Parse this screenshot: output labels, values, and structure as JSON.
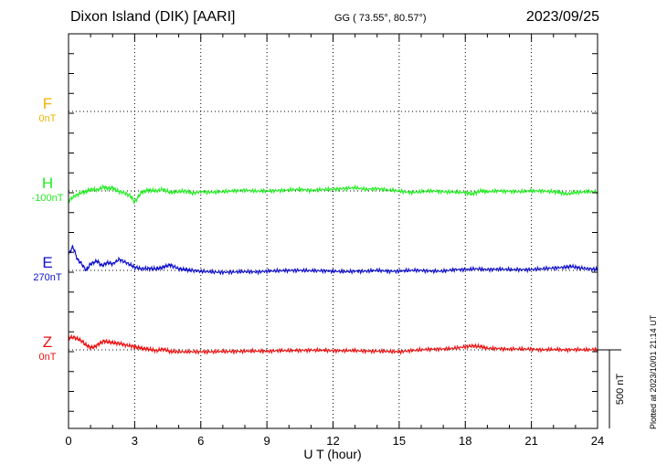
{
  "header": {
    "station": "Dixon Island (DIK)  [AARI]",
    "coords": "GG ( 73.55°,  80.57°)",
    "date": "2023/09/25"
  },
  "footer": {
    "plotted": "Plotted at 2023/10/01 21:14 UT"
  },
  "chart_data": {
    "type": "line",
    "xlabel": "U T (hour)",
    "xlim": [
      0,
      24
    ],
    "xticks": [
      0,
      3,
      6,
      9,
      12,
      15,
      18,
      21,
      24
    ],
    "scale_bar": "500 nT",
    "channels": [
      {
        "name": "F",
        "baseline": "0nT",
        "color": "#f0b400"
      },
      {
        "name": "H",
        "baseline": "-100nT",
        "color": "#22ee22"
      },
      {
        "name": "E",
        "baseline": "270nT",
        "color": "#1010cc"
      },
      {
        "name": "Z",
        "baseline": "0nT",
        "color": "#ee1111"
      }
    ],
    "series": [
      {
        "name": "H",
        "color": "#22ee22",
        "x": [
          0,
          0.3,
          0.6,
          0.8,
          1.0,
          1.3,
          1.6,
          1.8,
          2.0,
          2.2,
          2.5,
          2.8,
          3.0,
          3.3,
          3.6,
          4.0,
          4.3,
          4.6,
          5.0,
          5.3,
          5.6,
          6.0,
          6.5,
          7.0,
          7.5,
          8.0,
          8.5,
          9.0,
          9.5,
          10.0,
          10.5,
          11.0,
          11.5,
          12.0,
          12.5,
          13.0,
          13.5,
          14.0,
          14.5,
          15.0,
          15.5,
          16.0,
          16.5,
          17.0,
          17.5,
          18.0,
          18.3,
          18.7,
          19.0,
          19.5,
          20.0,
          20.5,
          21.0,
          21.5,
          22.0,
          22.3,
          22.6,
          23.0,
          23.5,
          24.0
        ],
        "y": [
          -60,
          -30,
          -10,
          -5,
          10,
          5,
          25,
          15,
          20,
          0,
          -10,
          -30,
          -70,
          -10,
          5,
          0,
          10,
          -10,
          -5,
          0,
          -15,
          -5,
          -8,
          -5,
          0,
          5,
          -2,
          0,
          2,
          5,
          10,
          3,
          8,
          10,
          15,
          20,
          10,
          15,
          5,
          0,
          -10,
          -5,
          0,
          -5,
          -8,
          -10,
          -20,
          0,
          -5,
          0,
          -3,
          -5,
          0,
          0,
          -5,
          -10,
          -20,
          -10,
          -5,
          -5
        ]
      },
      {
        "name": "E",
        "color": "#1010cc",
        "x": [
          0,
          0.2,
          0.4,
          0.6,
          0.8,
          1.0,
          1.3,
          1.5,
          1.8,
          2.0,
          2.3,
          2.6,
          3.0,
          3.3,
          3.6,
          4.0,
          4.3,
          4.6,
          5.0,
          5.3,
          5.6,
          6.0,
          6.5,
          7.0,
          7.5,
          8.0,
          8.5,
          9.0,
          9.5,
          10.0,
          10.5,
          11.0,
          11.5,
          12.0,
          12.5,
          13.0,
          13.5,
          14.0,
          14.5,
          15.0,
          15.5,
          16.0,
          16.5,
          17.0,
          17.5,
          18.0,
          18.5,
          19.0,
          19.5,
          20.0,
          20.5,
          21.0,
          21.5,
          22.0,
          22.5,
          22.8,
          23.2,
          23.6,
          24.0
        ],
        "y": [
          100,
          150,
          70,
          40,
          0,
          40,
          60,
          30,
          50,
          40,
          70,
          50,
          20,
          10,
          12,
          10,
          20,
          35,
          10,
          5,
          0,
          -5,
          -10,
          -12,
          -10,
          -8,
          -10,
          -5,
          -3,
          0,
          0,
          -2,
          -2,
          -5,
          -8,
          -5,
          -5,
          0,
          -5,
          -5,
          0,
          0,
          -5,
          -5,
          5,
          5,
          10,
          5,
          8,
          5,
          5,
          5,
          10,
          15,
          20,
          25,
          15,
          10,
          5
        ]
      },
      {
        "name": "Z",
        "color": "#ee1111",
        "x": [
          0,
          0.2,
          0.4,
          0.6,
          0.8,
          1.0,
          1.2,
          1.4,
          1.6,
          1.8,
          2.0,
          2.3,
          2.6,
          3.0,
          3.3,
          3.6,
          4.0,
          4.3,
          4.6,
          5.0,
          5.5,
          6.0,
          6.5,
          7.0,
          7.5,
          8.0,
          8.5,
          9.0,
          9.5,
          10.0,
          10.5,
          11.0,
          11.5,
          12.0,
          12.5,
          13.0,
          13.5,
          14.0,
          14.5,
          15.0,
          15.5,
          16.0,
          16.5,
          17.0,
          17.5,
          18.0,
          18.3,
          18.7,
          19.0,
          19.5,
          20.0,
          20.5,
          21.0,
          21.5,
          22.0,
          22.5,
          23.0,
          23.5,
          24.0
        ],
        "y": [
          75,
          80,
          70,
          55,
          30,
          15,
          20,
          40,
          55,
          50,
          45,
          40,
          30,
          20,
          10,
          5,
          -5,
          5,
          -10,
          -12,
          -12,
          -12,
          -12,
          -10,
          -10,
          -8,
          -8,
          -8,
          -5,
          -5,
          -3,
          -2,
          -3,
          -5,
          -5,
          -5,
          -8,
          -8,
          -10,
          -12,
          -5,
          0,
          5,
          5,
          10,
          20,
          25,
          20,
          10,
          8,
          5,
          5,
          5,
          0,
          3,
          0,
          2,
          0,
          3
        ]
      }
    ]
  }
}
